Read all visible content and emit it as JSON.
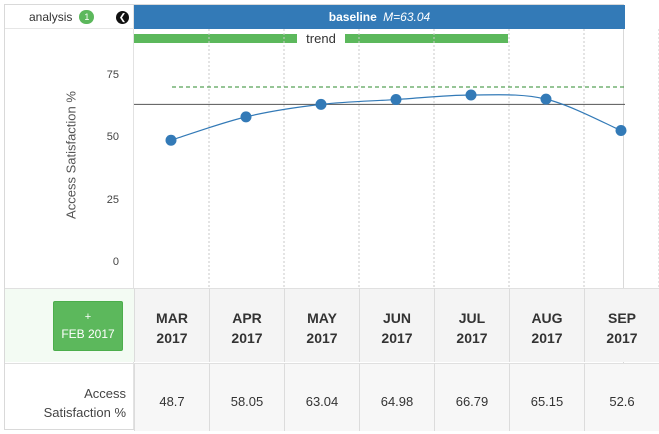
{
  "sidebar": {
    "analysis_label": "analysis",
    "analysis_count": "1",
    "collapse_icon": "chevron-left-icon"
  },
  "header": {
    "baseline_label": "baseline",
    "baseline_mean": "M=63.04"
  },
  "trend_label": "trend",
  "add_button": {
    "plus": "+",
    "label": "FEB 2017"
  },
  "row_label": [
    "Access",
    "Satisfaction %"
  ],
  "colors": {
    "header_blue": "#337ab7",
    "trend_green": "#5cb85c",
    "series_blue": "#337ab7",
    "baseline_line": "#555555",
    "goal_line": "#2e8b2e"
  },
  "months": [
    {
      "month": "MAR",
      "year": "2017",
      "value": "48.7"
    },
    {
      "month": "APR",
      "year": "2017",
      "value": "58.05"
    },
    {
      "month": "MAY",
      "year": "2017",
      "value": "63.04"
    },
    {
      "month": "JUN",
      "year": "2017",
      "value": "64.98"
    },
    {
      "month": "JUL",
      "year": "2017",
      "value": "66.79"
    },
    {
      "month": "AUG",
      "year": "2017",
      "value": "65.15"
    },
    {
      "month": "SEP",
      "year": "2017",
      "value": "52.6"
    }
  ],
  "chart_data": {
    "type": "line",
    "ylabel": "Access Satisfaction %",
    "ylim": [
      0,
      100
    ],
    "yticks": [
      0,
      25,
      50,
      75
    ],
    "categories": [
      "MAR 2017",
      "APR 2017",
      "MAY 2017",
      "JUN 2017",
      "JUL 2017",
      "AUG 2017",
      "SEP 2017"
    ],
    "series": [
      {
        "values": [
          48.7,
          58.05,
          63.04,
          64.98,
          66.79,
          65.15,
          52.6
        ]
      }
    ],
    "baseline": 63.04,
    "goal": 70,
    "grid": true
  }
}
